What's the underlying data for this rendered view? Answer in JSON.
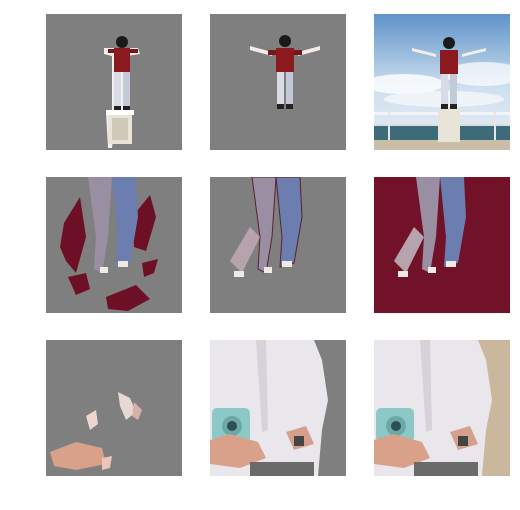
{
  "grid": {
    "rows": 3,
    "columns": 3,
    "panels": [
      {
        "row": 1,
        "col": 1,
        "content": "man-on-pedestal-coarse-mask"
      },
      {
        "row": 1,
        "col": 2,
        "content": "man-arms-out-fine-mask"
      },
      {
        "row": 1,
        "col": 3,
        "content": "man-arms-out-original"
      },
      {
        "row": 2,
        "col": 1,
        "content": "couple-legs-coarse-mask"
      },
      {
        "row": 2,
        "col": 2,
        "content": "couple-legs-fine-mask"
      },
      {
        "row": 2,
        "col": 3,
        "content": "couple-legs-original"
      },
      {
        "row": 3,
        "col": 1,
        "content": "hands-camera-coarse-mask"
      },
      {
        "row": 3,
        "col": 2,
        "content": "hands-camera-fine-mask"
      },
      {
        "row": 3,
        "col": 3,
        "content": "hands-camera-original"
      }
    ]
  },
  "colors": {
    "mask_gray": "#7f7f7f",
    "sky": "#9fc4e6",
    "shirt_red": "#8a1a1f",
    "carpet": "#6d0f25",
    "white_shirt": "#e9e6ec",
    "camera": "#8cc9c6"
  }
}
